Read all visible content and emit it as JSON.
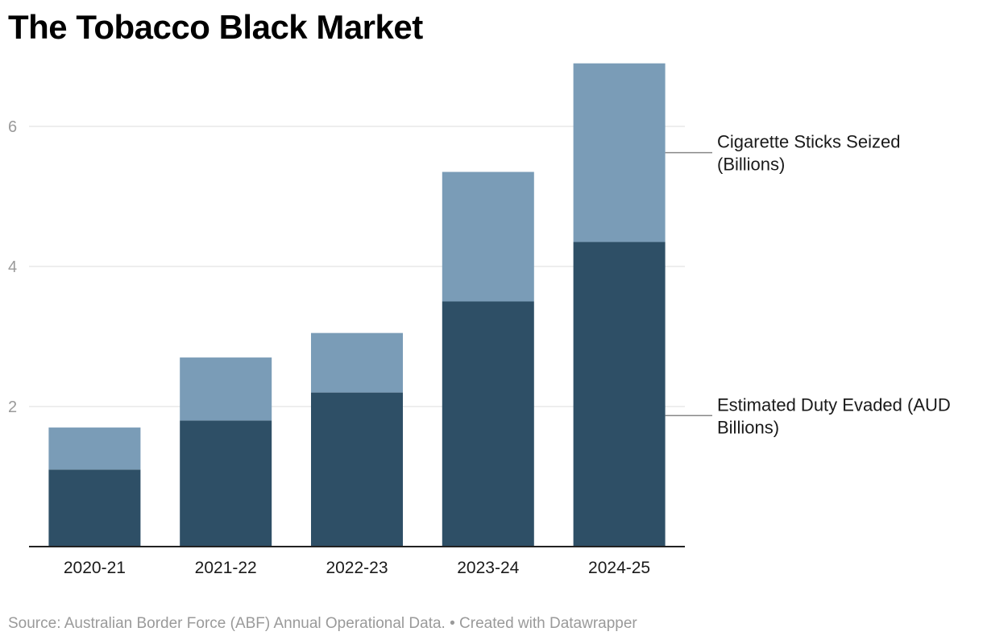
{
  "title": "The Tobacco Black Market",
  "footer": {
    "source": "Source: Australian Border Force (ABF) Annual Operational Data. • Created with Datawrapper"
  },
  "chart_data": {
    "type": "bar",
    "stacked": true,
    "categories": [
      "2020-21",
      "2021-22",
      "2022-23",
      "2023-24",
      "2024-25"
    ],
    "series": [
      {
        "name": "Estimated Duty Evaded (AUD Billions)",
        "label_lines": [
          "Estimated Duty Evaded (AUD",
          "Billions)"
        ],
        "color": "#2e4f66",
        "values": [
          1.1,
          1.8,
          2.2,
          3.5,
          4.35
        ]
      },
      {
        "name": "Cigarette Sticks Seized (Billions)",
        "label_lines": [
          "Cigarette Sticks Seized",
          "(Billions)"
        ],
        "color": "#7a9cb7",
        "values": [
          0.6,
          0.9,
          0.85,
          1.85,
          2.55
        ]
      }
    ],
    "yticks": [
      2,
      4,
      6
    ],
    "ylim": [
      0,
      6.9
    ],
    "grid": true,
    "legend": "direct-labels-right",
    "colors": {
      "grid": "#e3e3e3",
      "axis": "#222222",
      "tick_label": "#9a9a9a",
      "category_label": "#1a1a1a",
      "leader_line": "#888888"
    }
  }
}
